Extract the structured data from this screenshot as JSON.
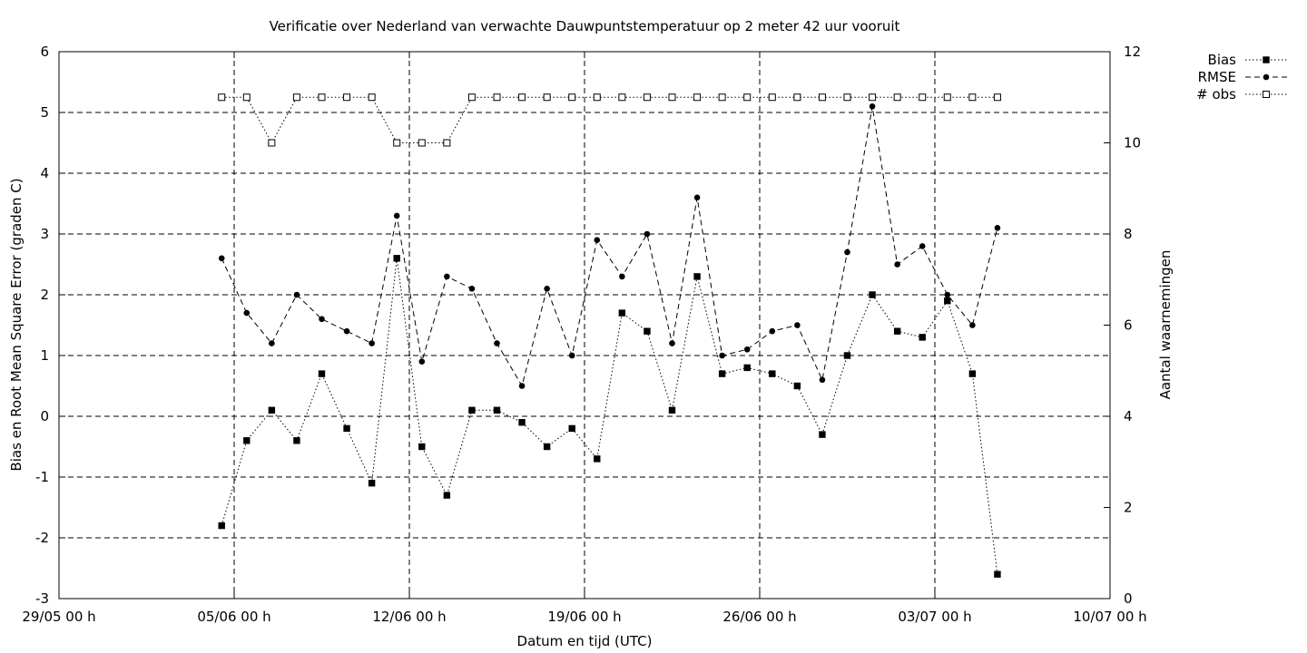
{
  "chart_data": {
    "type": "line",
    "title": "Verificatie over Nederland van verwachte Dauwpuntstemperatuur op 2 meter 42 uur vooruit",
    "xlabel": "Datum en tijd (UTC)",
    "ylabel": "Bias en Root Mean Square Error (graden C)",
    "y2label": "Aantal waarnemingen",
    "xlim": [
      "2023-05-29 00:00",
      "2023-07-10 00:00"
    ],
    "ylim": [
      -3,
      6
    ],
    "y2lim": [
      0,
      12
    ],
    "xticks": [
      "29/05 00 h",
      "05/06 00 h",
      "12/06 00 h",
      "19/06 00 h",
      "26/06 00 h",
      "03/07 00 h",
      "10/07 00 h"
    ],
    "yticks": [
      "-3",
      "-2",
      "-1",
      "0",
      "1",
      "2",
      "3",
      "4",
      "5",
      "6"
    ],
    "y2ticks": [
      "0",
      "2",
      "4",
      "6",
      "8",
      "10",
      "12"
    ],
    "grid": true,
    "legend_position": "top-right outside",
    "x": [
      "2023-06-04 12:00",
      "2023-06-05 12:00",
      "2023-06-06 12:00",
      "2023-06-07 12:00",
      "2023-06-08 12:00",
      "2023-06-09 12:00",
      "2023-06-10 12:00",
      "2023-06-11 12:00",
      "2023-06-12 12:00",
      "2023-06-13 12:00",
      "2023-06-14 12:00",
      "2023-06-15 12:00",
      "2023-06-16 12:00",
      "2023-06-17 12:00",
      "2023-06-18 12:00",
      "2023-06-19 12:00",
      "2023-06-20 12:00",
      "2023-06-21 12:00",
      "2023-06-22 12:00",
      "2023-06-23 12:00",
      "2023-06-24 12:00",
      "2023-06-25 12:00",
      "2023-06-26 12:00",
      "2023-06-27 12:00",
      "2023-06-28 12:00",
      "2023-06-29 12:00",
      "2023-06-30 12:00",
      "2023-07-01 12:00",
      "2023-07-02 12:00",
      "2023-07-03 12:00",
      "2023-07-04 12:00",
      "2023-07-05 12:00"
    ],
    "series": [
      {
        "name": "Bias",
        "axis": "left",
        "line_style": "dotted",
        "marker": "filled-square",
        "values": [
          -1.8,
          -0.4,
          0.1,
          -0.4,
          0.7,
          -0.2,
          -1.1,
          2.6,
          -0.5,
          -1.3,
          0.1,
          0.1,
          -0.1,
          -0.5,
          -0.2,
          -0.7,
          1.7,
          1.4,
          0.1,
          2.3,
          0.7,
          0.8,
          0.7,
          0.5,
          -0.3,
          1.0,
          2.0,
          1.4,
          1.3,
          1.9,
          0.7,
          -2.6
        ]
      },
      {
        "name": "RMSE",
        "axis": "left",
        "line_style": "dashed",
        "marker": "filled-circle",
        "values": [
          2.6,
          1.7,
          1.2,
          2.0,
          1.6,
          1.4,
          1.2,
          3.3,
          0.9,
          2.3,
          2.1,
          1.2,
          0.5,
          2.1,
          1.0,
          2.9,
          2.3,
          3.0,
          1.2,
          3.6,
          1.0,
          1.1,
          1.4,
          1.5,
          0.6,
          2.7,
          5.1,
          2.5,
          2.8,
          2.0,
          1.5,
          3.1
        ]
      },
      {
        "name": "# obs",
        "axis": "right",
        "line_style": "dotted",
        "marker": "open-square",
        "values": [
          11,
          11,
          10,
          11,
          11,
          11,
          11,
          10,
          10,
          10,
          11,
          11,
          11,
          11,
          11,
          11,
          11,
          11,
          11,
          11,
          11,
          11,
          11,
          11,
          11,
          11,
          11,
          11,
          11,
          11,
          11,
          11
        ]
      }
    ]
  }
}
